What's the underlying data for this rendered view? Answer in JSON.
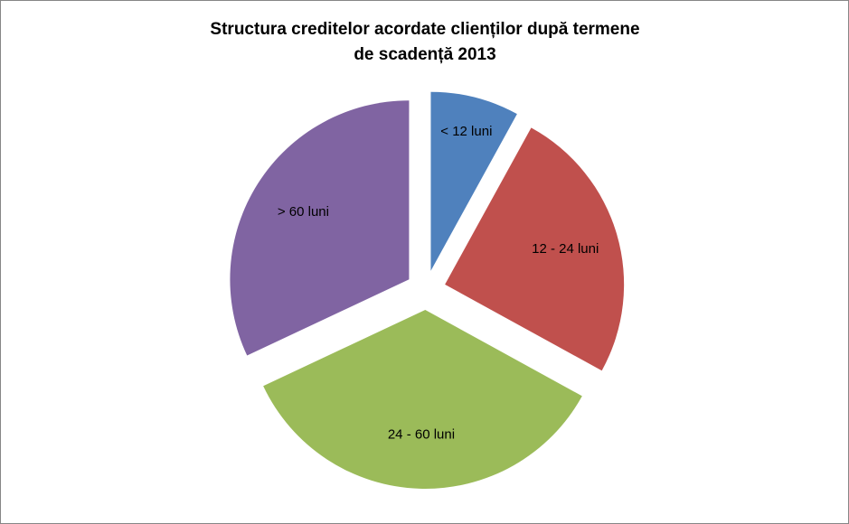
{
  "chart_data": {
    "type": "pie",
    "title": [
      "Structura creditelor acordate clienților după termene",
      "de scadență 2013"
    ],
    "categories": [
      "<  12 luni",
      "12 - 24 luni",
      "24 - 60 luni",
      "> 60 luni"
    ],
    "values": [
      8,
      25,
      35,
      32
    ],
    "colors": [
      "#4f81bd",
      "#c0504d",
      "#9bbb59",
      "#8064a2"
    ],
    "exploded": true
  }
}
